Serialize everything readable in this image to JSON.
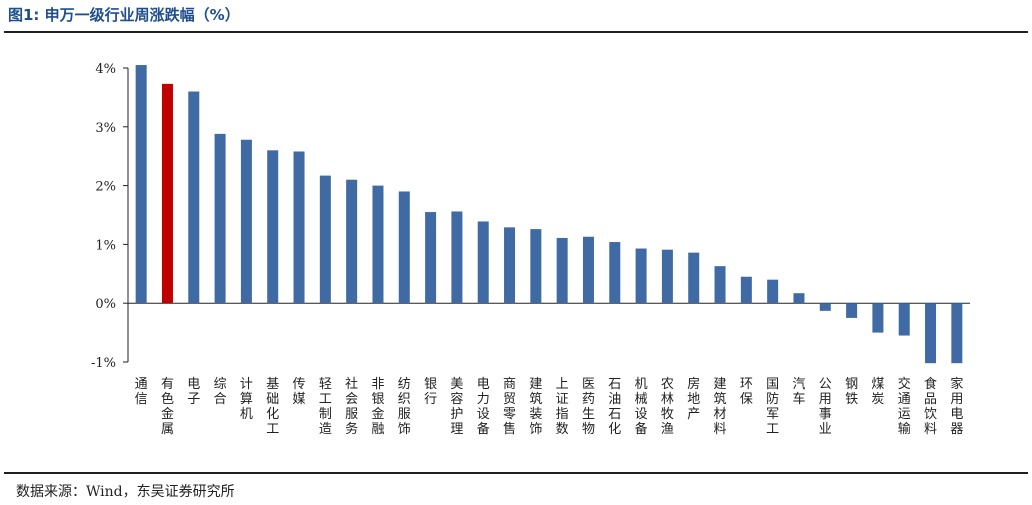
{
  "figure": {
    "title": "图1:  申万一级行业周涨跌幅（%）",
    "source": "数据来源：Wind，东吴证券研究所"
  },
  "chart_data": {
    "type": "bar",
    "title": "",
    "xlabel": "",
    "ylabel": "",
    "ylim": [
      -1,
      4
    ],
    "yticks": [
      "-1%",
      "0%",
      "1%",
      "2%",
      "3%",
      "4%"
    ],
    "grid": false,
    "legend": "none",
    "colors": {
      "default": "#3f6aa3",
      "highlight": "#c00000"
    },
    "highlight_category": "有色金属",
    "categories": [
      "通信",
      "有色金属",
      "电子",
      "综合",
      "计算机",
      "基础化工",
      "传媒",
      "轻工制造",
      "社会服务",
      "非银金融",
      "纺织服饰",
      "银行",
      "美容护理",
      "电力设备",
      "商贸零售",
      "建筑装饰",
      "上证指数",
      "医药生物",
      "石油石化",
      "机械设备",
      "农林牧渔",
      "房地产",
      "建筑材料",
      "环保",
      "国防军工",
      "汽车",
      "公用事业",
      "钢铁",
      "煤炭",
      "交通运输",
      "食品饮料",
      "家用电器"
    ],
    "values": [
      4.05,
      3.73,
      3.6,
      2.88,
      2.78,
      2.6,
      2.58,
      2.17,
      2.1,
      2.0,
      1.9,
      1.55,
      1.56,
      1.39,
      1.29,
      1.26,
      1.11,
      1.13,
      1.04,
      0.93,
      0.91,
      0.86,
      0.63,
      0.45,
      0.4,
      0.17,
      -0.13,
      -0.25,
      -0.5,
      -0.55,
      -1.02,
      -1.02
    ]
  }
}
